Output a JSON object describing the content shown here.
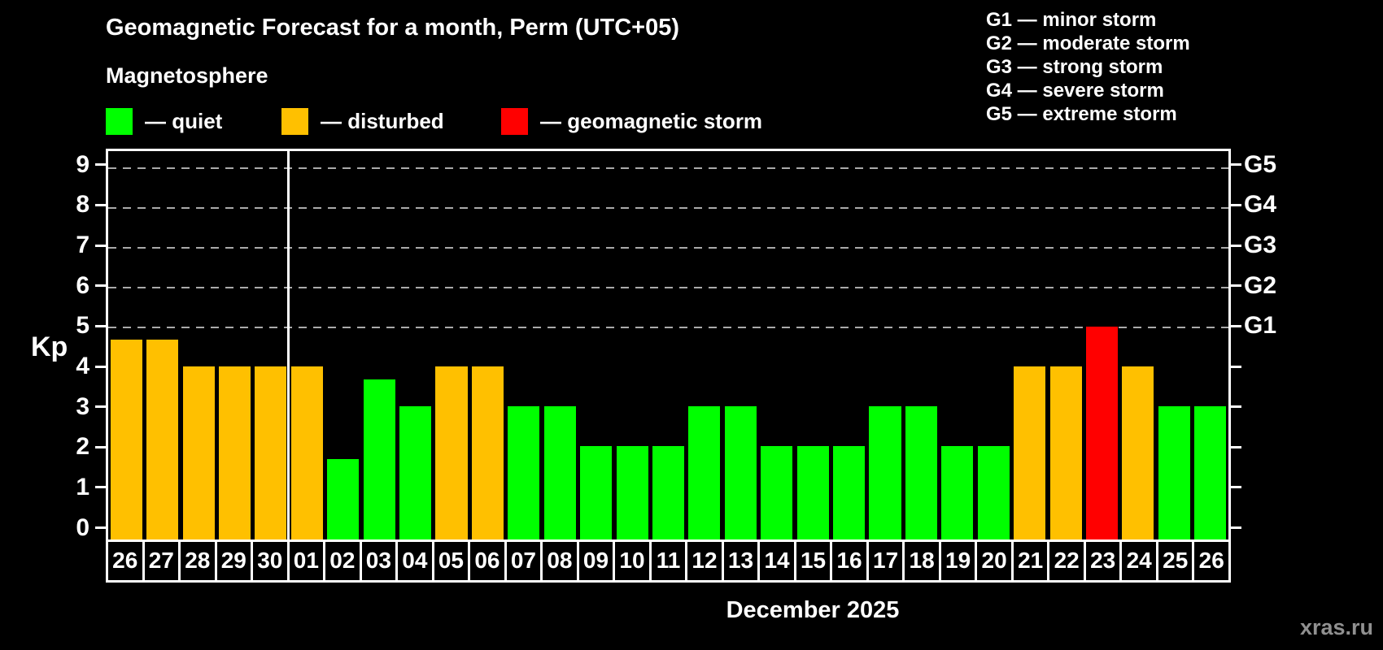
{
  "title": "Geomagnetic Forecast for a month, Perm (UTC+05)",
  "subtitle": "Magnetosphere",
  "watermark": "xras.ru",
  "colors": {
    "quiet": "#00ff00",
    "disturbed": "#ffc000",
    "storm": "#ff0000",
    "grid": "#aaaaaa",
    "axis": "#ffffff",
    "watermark_gray": "#909090",
    "background": "#000000"
  },
  "legend": [
    {
      "status": "quiet",
      "label": "— quiet"
    },
    {
      "status": "disturbed",
      "label": "— disturbed"
    },
    {
      "status": "storm",
      "label": "— geomagnetic storm"
    }
  ],
  "storm_scale_legend": [
    "G1 — minor storm",
    "G2 — moderate storm",
    "G3 — strong storm",
    "G4 — severe storm",
    "G5 — extreme storm"
  ],
  "chart_data": {
    "type": "bar",
    "title": "Geomagnetic Forecast for a month, Perm (UTC+05)",
    "ylabel": "Kp",
    "xlabel": "December 2025",
    "ylim": [
      -0.35,
      9.4
    ],
    "yticks": [
      0,
      1,
      2,
      3,
      4,
      5,
      6,
      7,
      8,
      9
    ],
    "gridlines_at": [
      5,
      6,
      7,
      8,
      9
    ],
    "grid_style": "dashed",
    "legend_position": "top",
    "right_axis": [
      {
        "kp": 5,
        "label": "G1"
      },
      {
        "kp": 6,
        "label": "G2"
      },
      {
        "kp": 7,
        "label": "G3"
      },
      {
        "kp": 8,
        "label": "G4"
      },
      {
        "kp": 9,
        "label": "G5"
      }
    ],
    "month_boundary_after_bar": 4,
    "bars": [
      {
        "day": "26",
        "kp": 4.67,
        "status": "disturbed"
      },
      {
        "day": "27",
        "kp": 4.67,
        "status": "disturbed"
      },
      {
        "day": "28",
        "kp": 4,
        "status": "disturbed"
      },
      {
        "day": "29",
        "kp": 4,
        "status": "disturbed"
      },
      {
        "day": "30",
        "kp": 4,
        "status": "disturbed"
      },
      {
        "day": "01",
        "kp": 4,
        "status": "disturbed"
      },
      {
        "day": "02",
        "kp": 1.67,
        "status": "quiet"
      },
      {
        "day": "03",
        "kp": 3.67,
        "status": "quiet"
      },
      {
        "day": "04",
        "kp": 3,
        "status": "quiet"
      },
      {
        "day": "05",
        "kp": 4,
        "status": "disturbed"
      },
      {
        "day": "06",
        "kp": 4,
        "status": "disturbed"
      },
      {
        "day": "07",
        "kp": 3,
        "status": "quiet"
      },
      {
        "day": "08",
        "kp": 3,
        "status": "quiet"
      },
      {
        "day": "09",
        "kp": 2,
        "status": "quiet"
      },
      {
        "day": "10",
        "kp": 2,
        "status": "quiet"
      },
      {
        "day": "11",
        "kp": 2,
        "status": "quiet"
      },
      {
        "day": "12",
        "kp": 3,
        "status": "quiet"
      },
      {
        "day": "13",
        "kp": 3,
        "status": "quiet"
      },
      {
        "day": "14",
        "kp": 2,
        "status": "quiet"
      },
      {
        "day": "15",
        "kp": 2,
        "status": "quiet"
      },
      {
        "day": "16",
        "kp": 2,
        "status": "quiet"
      },
      {
        "day": "17",
        "kp": 3,
        "status": "quiet"
      },
      {
        "day": "18",
        "kp": 3,
        "status": "quiet"
      },
      {
        "day": "19",
        "kp": 2,
        "status": "quiet"
      },
      {
        "day": "20",
        "kp": 2,
        "status": "quiet"
      },
      {
        "day": "21",
        "kp": 4,
        "status": "disturbed"
      },
      {
        "day": "22",
        "kp": 4,
        "status": "disturbed"
      },
      {
        "day": "23",
        "kp": 5,
        "status": "storm"
      },
      {
        "day": "24",
        "kp": 4,
        "status": "disturbed"
      },
      {
        "day": "25",
        "kp": 3,
        "status": "quiet"
      },
      {
        "day": "26",
        "kp": 3,
        "status": "quiet"
      }
    ]
  }
}
